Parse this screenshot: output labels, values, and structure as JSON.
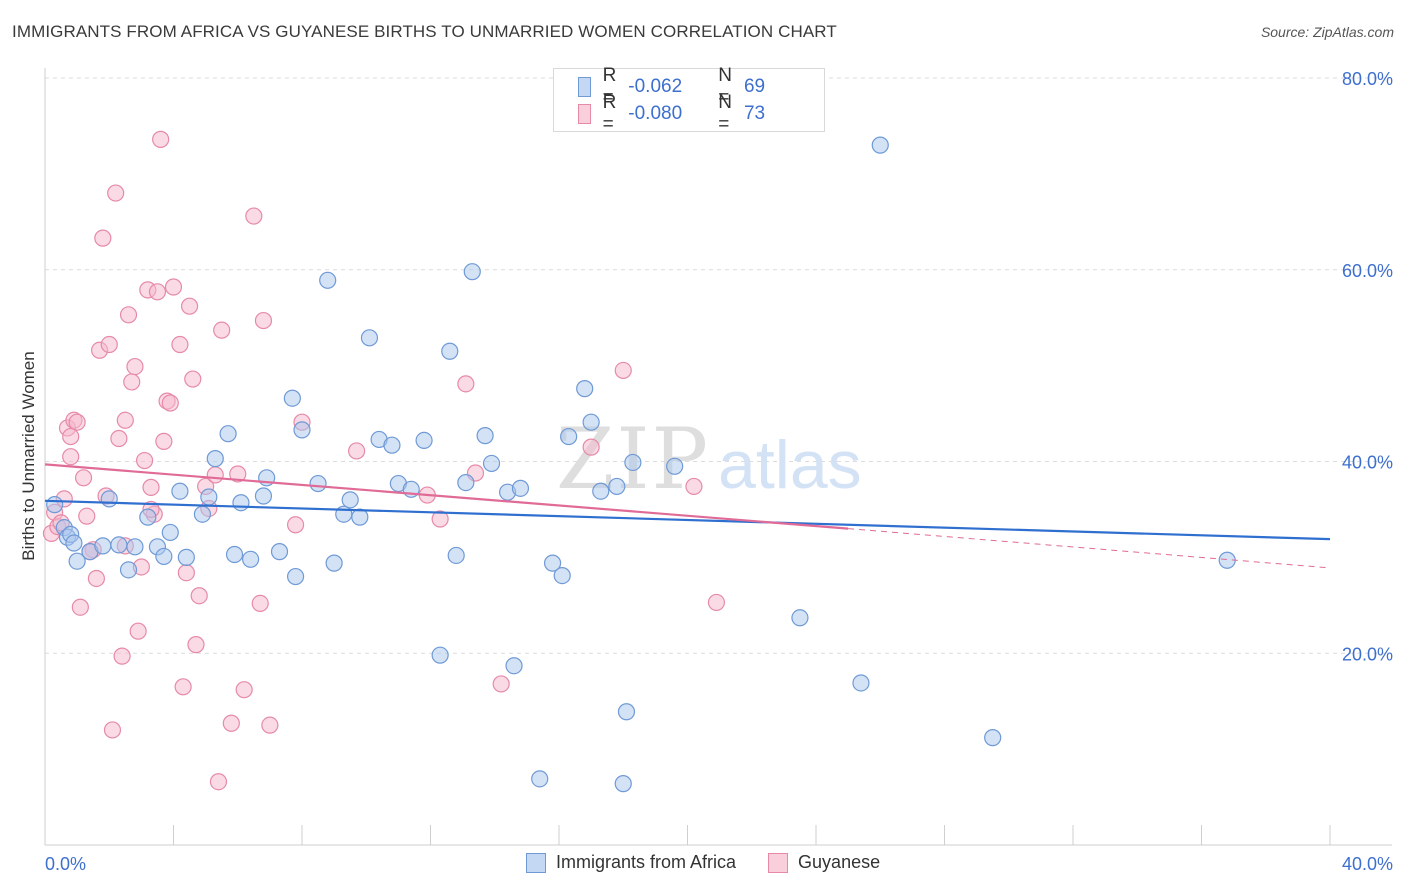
{
  "title": "IMMIGRANTS FROM AFRICA VS GUYANESE BIRTHS TO UNMARRIED WOMEN CORRELATION CHART",
  "source": "Source: ZipAtlas.com",
  "watermark": {
    "zip": "ZIP",
    "atlas": "atlas"
  },
  "legend": {
    "r_label": "R =",
    "n_label": "N =",
    "series": [
      {
        "r": "-0.062",
        "n": "69"
      },
      {
        "r": "-0.080",
        "n": "73"
      }
    ]
  },
  "chart_data": {
    "type": "scatter",
    "title": "IMMIGRANTS FROM AFRICA VS GUYANESE BIRTHS TO UNMARRIED WOMEN CORRELATION CHART",
    "xlabel": "",
    "ylabel": "Births to Unmarried Women",
    "xlim": [
      0,
      40
    ],
    "ylim": [
      0,
      80
    ],
    "x_tick_labels": [
      "0.0%",
      "40.0%"
    ],
    "y_ticks": [
      20,
      40,
      60,
      80
    ],
    "y_tick_labels": [
      "20.0%",
      "40.0%",
      "60.0%",
      "80.0%"
    ],
    "grid": true,
    "colors": {
      "blue_fill": "#a9c6ee",
      "blue_stroke": "#6f9ad6",
      "blue_line": "#2f6fcf",
      "pink_fill": "#f5b8cb",
      "pink_stroke": "#e68aa8",
      "pink_line": "#e06b96",
      "tick_label": "#3d6fcf",
      "grid": "#dcdcdc"
    },
    "series": [
      {
        "name": "Immigrants from Africa",
        "trend": {
          "x0": 0.0,
          "y0": 35.9,
          "x1": 40.0,
          "y1": 31.9
        },
        "points": [
          [
            0.3,
            35.5
          ],
          [
            0.6,
            33.1
          ],
          [
            0.7,
            32.1
          ],
          [
            0.8,
            32.4
          ],
          [
            0.9,
            31.5
          ],
          [
            1.0,
            29.6
          ],
          [
            1.4,
            30.6
          ],
          [
            1.8,
            31.2
          ],
          [
            2.0,
            36.1
          ],
          [
            2.3,
            31.3
          ],
          [
            2.6,
            28.7
          ],
          [
            2.8,
            31.1
          ],
          [
            3.2,
            34.2
          ],
          [
            3.5,
            31.1
          ],
          [
            3.7,
            30.1
          ],
          [
            3.9,
            32.6
          ],
          [
            4.2,
            36.9
          ],
          [
            4.4,
            30.0
          ],
          [
            4.9,
            34.5
          ],
          [
            5.1,
            36.3
          ],
          [
            5.3,
            40.3
          ],
          [
            5.7,
            42.9
          ],
          [
            5.9,
            30.3
          ],
          [
            6.1,
            35.7
          ],
          [
            6.4,
            29.8
          ],
          [
            6.8,
            36.4
          ],
          [
            6.9,
            38.3
          ],
          [
            7.3,
            30.6
          ],
          [
            7.7,
            46.6
          ],
          [
            7.8,
            28.0
          ],
          [
            8.0,
            43.3
          ],
          [
            8.5,
            37.7
          ],
          [
            8.8,
            58.9
          ],
          [
            9.0,
            29.4
          ],
          [
            9.3,
            34.5
          ],
          [
            9.5,
            36.0
          ],
          [
            9.8,
            34.2
          ],
          [
            10.1,
            52.9
          ],
          [
            10.4,
            42.3
          ],
          [
            10.8,
            41.7
          ],
          [
            11.0,
            37.7
          ],
          [
            11.4,
            37.1
          ],
          [
            11.8,
            42.2
          ],
          [
            12.3,
            19.8
          ],
          [
            12.6,
            51.5
          ],
          [
            12.8,
            30.2
          ],
          [
            13.1,
            37.8
          ],
          [
            13.3,
            59.8
          ],
          [
            13.7,
            42.7
          ],
          [
            13.9,
            39.8
          ],
          [
            14.4,
            36.8
          ],
          [
            14.6,
            18.7
          ],
          [
            14.8,
            37.2
          ],
          [
            15.4,
            6.9
          ],
          [
            15.8,
            29.4
          ],
          [
            16.1,
            28.1
          ],
          [
            16.3,
            42.6
          ],
          [
            16.8,
            47.6
          ],
          [
            17.0,
            44.1
          ],
          [
            17.3,
            36.9
          ],
          [
            17.8,
            37.4
          ],
          [
            18.0,
            6.4
          ],
          [
            18.1,
            13.9
          ],
          [
            18.3,
            39.9
          ],
          [
            19.6,
            39.5
          ],
          [
            23.5,
            23.7
          ],
          [
            25.4,
            16.9
          ],
          [
            26.0,
            73.0
          ],
          [
            29.5,
            11.2
          ],
          [
            36.8,
            29.7
          ]
        ]
      },
      {
        "name": "Guyanese",
        "trend": {
          "x0": 0.0,
          "y0": 39.7,
          "x1": 25.0,
          "y1": 33.0
        },
        "trend_ext": {
          "x0": 25.0,
          "y0": 33.0,
          "x1": 40.0,
          "y1": 28.9
        },
        "points": [
          [
            0.2,
            32.5
          ],
          [
            0.3,
            34.7
          ],
          [
            0.4,
            33.2
          ],
          [
            0.5,
            33.6
          ],
          [
            0.6,
            36.1
          ],
          [
            0.7,
            43.5
          ],
          [
            0.8,
            42.6
          ],
          [
            0.8,
            40.5
          ],
          [
            0.9,
            44.3
          ],
          [
            1.0,
            44.1
          ],
          [
            1.1,
            24.8
          ],
          [
            1.2,
            38.3
          ],
          [
            1.3,
            34.3
          ],
          [
            1.5,
            30.8
          ],
          [
            1.6,
            27.8
          ],
          [
            1.7,
            51.6
          ],
          [
            1.8,
            63.3
          ],
          [
            1.9,
            36.4
          ],
          [
            2.0,
            52.2
          ],
          [
            2.1,
            12.0
          ],
          [
            2.2,
            68.0
          ],
          [
            2.3,
            42.4
          ],
          [
            2.4,
            19.7
          ],
          [
            2.5,
            44.3
          ],
          [
            2.6,
            55.3
          ],
          [
            2.7,
            48.3
          ],
          [
            2.8,
            49.9
          ],
          [
            2.9,
            22.3
          ],
          [
            3.0,
            29.0
          ],
          [
            3.1,
            40.1
          ],
          [
            3.2,
            57.9
          ],
          [
            3.3,
            37.3
          ],
          [
            3.4,
            34.5
          ],
          [
            3.5,
            57.7
          ],
          [
            3.6,
            73.6
          ],
          [
            3.7,
            42.1
          ],
          [
            3.8,
            46.3
          ],
          [
            3.9,
            46.1
          ],
          [
            4.0,
            58.2
          ],
          [
            4.2,
            52.2
          ],
          [
            4.3,
            16.5
          ],
          [
            4.4,
            28.4
          ],
          [
            4.5,
            56.2
          ],
          [
            4.6,
            48.6
          ],
          [
            4.7,
            20.9
          ],
          [
            4.8,
            26.0
          ],
          [
            5.0,
            37.4
          ],
          [
            5.1,
            35.1
          ],
          [
            5.3,
            38.6
          ],
          [
            5.4,
            6.6
          ],
          [
            5.5,
            53.7
          ],
          [
            5.8,
            12.7
          ],
          [
            6.0,
            38.7
          ],
          [
            6.2,
            16.2
          ],
          [
            6.5,
            65.6
          ],
          [
            6.7,
            25.2
          ],
          [
            6.8,
            54.7
          ],
          [
            7.0,
            12.5
          ],
          [
            7.8,
            33.4
          ],
          [
            8.0,
            44.1
          ],
          [
            9.7,
            41.1
          ],
          [
            11.9,
            36.5
          ],
          [
            12.3,
            34.0
          ],
          [
            13.1,
            48.1
          ],
          [
            13.4,
            38.8
          ],
          [
            14.2,
            16.8
          ],
          [
            17.0,
            41.5
          ],
          [
            18.0,
            49.5
          ],
          [
            20.2,
            37.4
          ],
          [
            20.9,
            25.3
          ],
          [
            1.4,
            30.6
          ],
          [
            2.5,
            31.2
          ],
          [
            3.3,
            35.0
          ]
        ]
      }
    ]
  },
  "bottom_legend": [
    {
      "label": "Immigrants from Africa"
    },
    {
      "label": "Guyanese"
    }
  ]
}
